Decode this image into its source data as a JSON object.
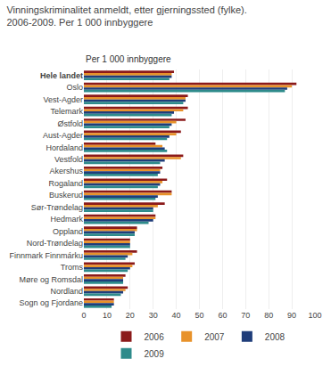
{
  "chart_data": {
    "type": "bar",
    "orientation": "horizontal",
    "title": "Vinningskriminalitet anmeldt, etter gjerningssted (fylke).\n2006-2009. Per 1 000 innbyggere",
    "subtitle": "Per 1 000 innbyggere",
    "categories": [
      "Hele landet",
      "Oslo",
      "Vest-Agder",
      "Telemark",
      "Østfold",
      "Aust-Agder",
      "Hordaland",
      "Vestfold",
      "Akershus",
      "Rogaland",
      "Buskerud",
      "Sør-Trøndelag",
      "Hedmark",
      "Oppland",
      "Nord-Trøndelag",
      "Finnmark Finnmárku",
      "Troms",
      "Møre og Romsdal",
      "Nordland",
      "Sogn og Fjordane"
    ],
    "series": [
      {
        "name": "2006",
        "color": "#8B1A1A",
        "values": [
          39,
          92,
          45,
          45,
          44,
          42,
          31,
          43,
          34,
          36,
          38,
          35,
          31,
          23,
          20,
          23,
          22,
          18,
          19,
          13
        ]
      },
      {
        "name": "2007",
        "color": "#E8922A",
        "values": [
          38,
          90,
          44,
          43,
          40,
          40,
          34,
          42,
          33,
          34,
          38,
          32,
          31,
          23,
          20,
          21,
          21,
          17,
          18,
          13
        ]
      },
      {
        "name": "2008",
        "color": "#1F3D7A",
        "values": [
          38,
          88,
          44,
          39,
          38,
          37,
          35,
          35,
          33,
          33,
          32,
          30,
          30,
          22,
          20,
          19,
          20,
          17,
          17,
          13
        ]
      },
      {
        "name": "2009",
        "color": "#2E8B8B",
        "values": [
          37,
          87,
          43,
          38,
          37,
          36,
          36,
          33,
          32,
          32,
          31,
          30,
          28,
          22,
          20,
          18,
          19,
          17,
          16,
          12
        ]
      }
    ],
    "xlim": [
      0,
      100
    ],
    "xticks": [
      0,
      10,
      20,
      30,
      40,
      50,
      60,
      70,
      80,
      90,
      100
    ],
    "grid": true,
    "legend": "bottom"
  }
}
